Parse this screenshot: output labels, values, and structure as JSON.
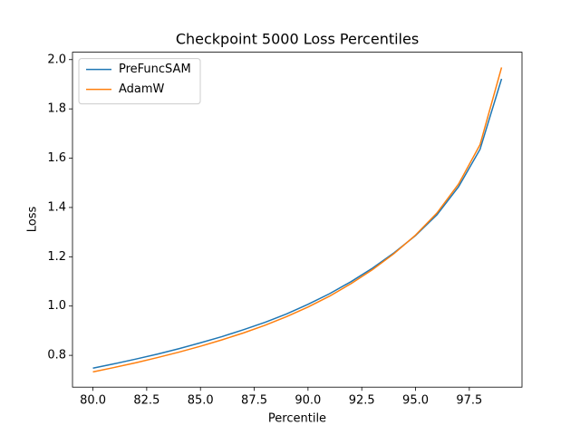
{
  "chart_data": {
    "type": "line",
    "title": "Checkpoint 5000 Loss Percentiles",
    "x_label": "Percentile",
    "y_label": "Loss",
    "x": [
      80,
      81,
      82,
      83,
      84,
      85,
      86,
      87,
      88,
      89,
      90,
      91,
      92,
      93,
      94,
      95,
      96,
      97,
      98,
      99
    ],
    "series": [
      {
        "name": "PreFuncSAM",
        "color": "#1f77b4",
        "values": [
          0.748,
          0.766,
          0.785,
          0.805,
          0.827,
          0.851,
          0.876,
          0.904,
          0.934,
          0.968,
          1.007,
          1.05,
          1.099,
          1.154,
          1.216,
          1.286,
          1.371,
          1.484,
          1.636,
          1.922
        ]
      },
      {
        "name": "AdamW",
        "color": "#ff7f0e",
        "values": [
          0.733,
          0.751,
          0.77,
          0.791,
          0.813,
          0.837,
          0.863,
          0.891,
          0.922,
          0.957,
          0.996,
          1.04,
          1.091,
          1.148,
          1.213,
          1.288,
          1.378,
          1.495,
          1.655,
          1.968
        ]
      }
    ],
    "xlim": [
      79.05,
      99.95
    ],
    "xticks": [
      {
        "value": 80,
        "label": "80.0"
      },
      {
        "value": 82.5,
        "label": "82.5"
      },
      {
        "value": 85,
        "label": "85.0"
      },
      {
        "value": 87.5,
        "label": "87.5"
      },
      {
        "value": 90,
        "label": "90.0"
      },
      {
        "value": 92.5,
        "label": "92.5"
      },
      {
        "value": 95,
        "label": "95.0"
      },
      {
        "value": 97.5,
        "label": "97.5"
      }
    ],
    "ylim": [
      0.671,
      2.03
    ],
    "yticks": [
      0.8,
      {
        "value": 1,
        "label": "1.0"
      },
      1.2,
      1.4,
      1.6,
      1.8,
      {
        "value": 2,
        "label": "2.0"
      }
    ],
    "legend": "upper left",
    "grid": false
  }
}
